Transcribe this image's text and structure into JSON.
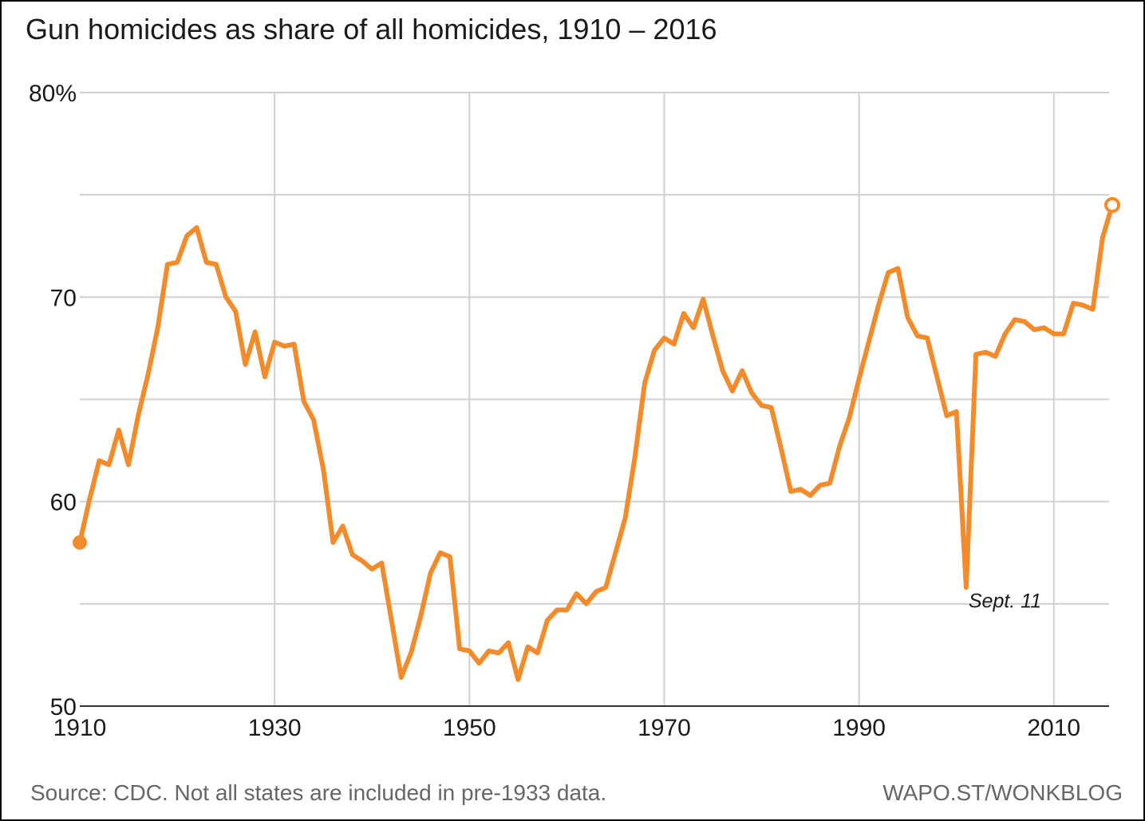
{
  "title": "Gun homicides as share of all homicides, 1910 – 2016",
  "source_note": "Source: CDC. Not all states are included in pre-1933 data.",
  "credit": "WAPO.ST/WONKBLOG",
  "colors": {
    "line": "#f38b2a",
    "grid": "#d0d0d0",
    "axis": "#333333",
    "text": "#1a1a1a",
    "footer": "#666666"
  },
  "chart_data": {
    "type": "line",
    "title": "Gun homicides as share of all homicides, 1910 – 2016",
    "xlabel": "",
    "ylabel": "",
    "xlim": [
      1910,
      2016
    ],
    "ylim": [
      50,
      80
    ],
    "x_ticks": [
      1910,
      1930,
      1950,
      1970,
      1990,
      2010
    ],
    "x_tick_labels": [
      "1910",
      "1930",
      "1950",
      "1970",
      "1990",
      "2010"
    ],
    "y_ticks": [
      50,
      60,
      70,
      80
    ],
    "y_tick_labels": [
      "50",
      "60",
      "70",
      "80%"
    ],
    "y_gridlines": [
      55,
      60,
      65,
      70,
      75,
      80
    ],
    "grid": true,
    "series": [
      {
        "x": [
          1910,
          1911,
          1912,
          1913,
          1914,
          1915,
          1916,
          1917,
          1918,
          1919,
          1920,
          1921,
          1922,
          1923,
          1924,
          1925,
          1926,
          1927,
          1928,
          1929,
          1930,
          1931,
          1932,
          1933,
          1934,
          1935,
          1936,
          1937,
          1938,
          1939,
          1940,
          1941,
          1942,
          1943,
          1944,
          1945,
          1946,
          1947,
          1948,
          1949,
          1950,
          1951,
          1952,
          1953,
          1954,
          1955,
          1956,
          1957,
          1958,
          1959,
          1960,
          1961,
          1962,
          1963,
          1964,
          1965,
          1966,
          1967,
          1968,
          1969,
          1970,
          1971,
          1972,
          1973,
          1974,
          1975,
          1976,
          1977,
          1978,
          1979,
          1980,
          1981,
          1982,
          1983,
          1984,
          1985,
          1986,
          1987,
          1988,
          1989,
          1990,
          1991,
          1992,
          1993,
          1994,
          1995,
          1996,
          1997,
          1998,
          1999,
          2000,
          2001,
          2002,
          2003,
          2004,
          2005,
          2006,
          2007,
          2008,
          2009,
          2010,
          2011,
          2012,
          2013,
          2014,
          2015,
          2016
        ],
        "values": [
          58.0,
          60.1,
          62.0,
          61.8,
          63.5,
          61.8,
          64.2,
          66.2,
          68.5,
          71.6,
          71.7,
          73.0,
          73.4,
          71.7,
          71.6,
          70.0,
          69.3,
          66.7,
          68.3,
          66.1,
          67.8,
          67.6,
          67.7,
          64.9,
          64.0,
          61.6,
          58.0,
          58.8,
          57.4,
          57.1,
          56.7,
          57.0,
          54.2,
          51.4,
          52.6,
          54.4,
          56.5,
          57.5,
          57.3,
          52.8,
          52.7,
          52.1,
          52.7,
          52.6,
          53.1,
          51.3,
          52.9,
          52.6,
          54.2,
          54.7,
          54.7,
          55.5,
          55.0,
          55.6,
          55.8,
          57.5,
          59.2,
          62.2,
          65.8,
          67.4,
          68.0,
          67.7,
          69.2,
          68.5,
          69.9,
          68.1,
          66.4,
          65.4,
          66.4,
          65.3,
          64.7,
          64.6,
          62.6,
          60.5,
          60.6,
          60.3,
          60.8,
          60.9,
          62.7,
          64.1,
          66.0,
          67.8,
          69.6,
          71.2,
          71.4,
          69.0,
          68.1,
          68.0,
          66.1,
          64.2,
          64.4,
          55.8,
          67.2,
          67.3,
          67.1,
          68.2,
          68.9,
          68.8,
          68.4,
          68.5,
          68.2,
          68.2,
          69.7,
          69.6,
          69.4,
          72.9,
          74.5
        ]
      }
    ],
    "annotations": [
      {
        "x": 2001,
        "y": 55.8,
        "text": "Sept. 11"
      }
    ],
    "markers": [
      {
        "x": 1910,
        "y": 58.0,
        "style": "filled"
      },
      {
        "x": 2016,
        "y": 74.5,
        "style": "hollow"
      }
    ]
  }
}
